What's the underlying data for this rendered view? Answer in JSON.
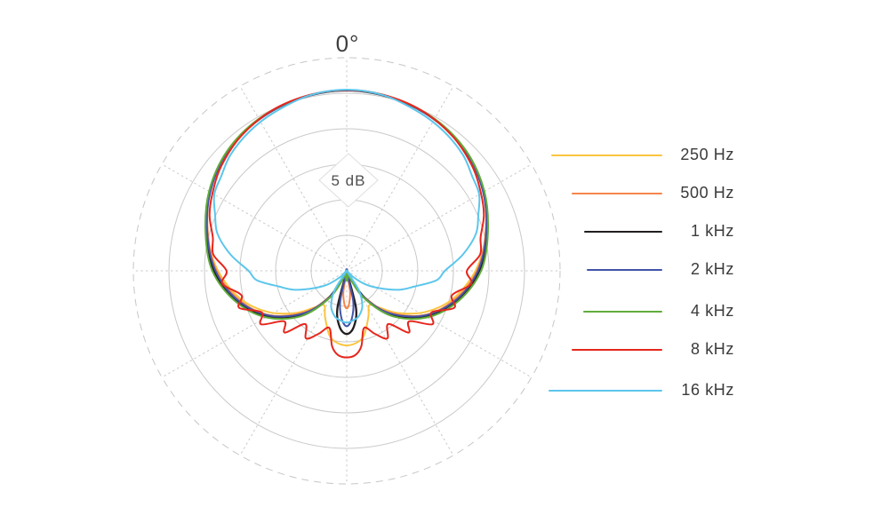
{
  "chart": {
    "angle_top_label": "0°",
    "ring_spacing_label": "5 dB"
  },
  "chart_data": {
    "type": "line",
    "coordinate_system": "polar",
    "description": "Microphone directional (polar) response at seven frequencies; radial axis in dB, 5 dB per ring, grid spokes every 30 degrees, 0 dB at second ring from outside, outer dashed ring, curves mirrored about the 0°-180° axis.",
    "units": {
      "angle": "degrees from 0° at top",
      "radial": "dB"
    },
    "radial_axis": {
      "ring_spacing_db": 5,
      "solid_rings_db": [
        -20,
        -15,
        -10,
        -5,
        0
      ],
      "outer_dashed_ring_db": 5,
      "center_db": -25
    },
    "angle_grid_step_deg": 30,
    "symmetry": "mirrored about vertical axis",
    "series": [
      {
        "name": "250 Hz",
        "color": "#FAC53F",
        "points_deg_db": [
          [
            0,
            0.4
          ],
          [
            15,
            0.2
          ],
          [
            30,
            -0.3
          ],
          [
            45,
            -1.2
          ],
          [
            60,
            -2.7
          ],
          [
            75,
            -4.7
          ],
          [
            90,
            -6.9
          ],
          [
            105,
            -9.6
          ],
          [
            118,
            -12.6
          ],
          [
            130,
            -15.8
          ],
          [
            140,
            -18.4
          ],
          [
            147,
            -19.2
          ],
          [
            155,
            -17.8
          ],
          [
            165,
            -15.6
          ],
          [
            172,
            -14.8
          ],
          [
            180,
            -14.5
          ]
        ]
      },
      {
        "name": "500 Hz",
        "color": "#F6854C",
        "points_deg_db": [
          [
            0,
            0.4
          ],
          [
            15,
            0.15
          ],
          [
            30,
            -0.4
          ],
          [
            45,
            -1.3
          ],
          [
            60,
            -2.8
          ],
          [
            75,
            -4.8
          ],
          [
            90,
            -6.7
          ],
          [
            105,
            -9.3
          ],
          [
            120,
            -12.5
          ],
          [
            135,
            -16.8
          ],
          [
            147,
            -20.8
          ],
          [
            156,
            -23.8
          ],
          [
            163,
            -25
          ],
          [
            171,
            -22
          ],
          [
            176,
            -20.3
          ],
          [
            180,
            -19.7
          ]
        ]
      },
      {
        "name": "1 kHz",
        "color": "#221E1F",
        "points_deg_db": [
          [
            0,
            0.4
          ],
          [
            15,
            0.15
          ],
          [
            30,
            -0.35
          ],
          [
            45,
            -1.25
          ],
          [
            60,
            -2.75
          ],
          [
            75,
            -4.6
          ],
          [
            90,
            -6.3
          ],
          [
            105,
            -8.9
          ],
          [
            120,
            -12.1
          ],
          [
            134,
            -15.9
          ],
          [
            145,
            -19.8
          ],
          [
            153,
            -23.5
          ],
          [
            158,
            -25
          ],
          [
            166,
            -19.6
          ],
          [
            173,
            -17
          ],
          [
            180,
            -16.1
          ]
        ]
      },
      {
        "name": "2 kHz",
        "color": "#4253A8",
        "points_deg_db": [
          [
            0,
            0.4
          ],
          [
            15,
            0.15
          ],
          [
            30,
            -0.4
          ],
          [
            45,
            -1.3
          ],
          [
            60,
            -2.85
          ],
          [
            75,
            -4.7
          ],
          [
            90,
            -6.55
          ],
          [
            105,
            -9.1
          ],
          [
            120,
            -12.4
          ],
          [
            135,
            -16.6
          ],
          [
            147,
            -20.6
          ],
          [
            156,
            -24.2
          ],
          [
            161,
            -25
          ],
          [
            168,
            -20.6
          ],
          [
            174,
            -18.2
          ],
          [
            180,
            -17.2
          ]
        ]
      },
      {
        "name": "4 kHz",
        "color": "#60AC3B",
        "points_deg_db": [
          [
            0,
            0.45
          ],
          [
            15,
            0.2
          ],
          [
            30,
            -0.3
          ],
          [
            45,
            -1.2
          ],
          [
            60,
            -2.65
          ],
          [
            75,
            -4.45
          ],
          [
            90,
            -6.1
          ],
          [
            105,
            -8.7
          ],
          [
            120,
            -11.9
          ],
          [
            135,
            -16
          ],
          [
            148,
            -20.6
          ],
          [
            158,
            -24.2
          ],
          [
            163,
            -25
          ],
          [
            170,
            -24.5
          ],
          [
            175,
            -23.9
          ],
          [
            180,
            -23.6
          ]
        ]
      },
      {
        "name": "8 kHz",
        "color": "#E6261D",
        "points_deg_db": [
          [
            0,
            0.45
          ],
          [
            12,
            0.3
          ],
          [
            25,
            -0.1
          ],
          [
            38,
            -0.9
          ],
          [
            50,
            -2
          ],
          [
            60,
            -3.2
          ],
          [
            68,
            -4.2
          ],
          [
            76,
            -5.6
          ],
          [
            83,
            -6.1
          ],
          [
            90,
            -8.1
          ],
          [
            96,
            -7.4
          ],
          [
            103,
            -9.8
          ],
          [
            109,
            -9
          ],
          [
            116,
            -11.7
          ],
          [
            122,
            -10.8
          ],
          [
            129,
            -13.7
          ],
          [
            135,
            -12.7
          ],
          [
            142,
            -15.5
          ],
          [
            149,
            -13.9
          ],
          [
            156,
            -15.3
          ],
          [
            163,
            -16.6
          ],
          [
            169,
            -14.2
          ],
          [
            174,
            -13.1
          ],
          [
            180,
            -12.8
          ]
        ]
      },
      {
        "name": "16 kHz",
        "color": "#5CC6EC",
        "points_deg_db": [
          [
            0,
            0.5
          ],
          [
            12,
            0.25
          ],
          [
            25,
            -0.5
          ],
          [
            35,
            -1.1
          ],
          [
            45,
            -1.9
          ],
          [
            53,
            -2.9
          ],
          [
            60,
            -3.5
          ],
          [
            67,
            -4.9
          ],
          [
            74,
            -6.1
          ],
          [
            82,
            -8.5
          ],
          [
            90,
            -11.2
          ],
          [
            96,
            -12.3
          ],
          [
            103,
            -15.2
          ],
          [
            110,
            -17.2
          ],
          [
            118,
            -19.8
          ],
          [
            126,
            -21.8
          ],
          [
            134,
            -23.8
          ],
          [
            140,
            -25
          ],
          [
            148,
            -21.8
          ],
          [
            156,
            -19.6
          ],
          [
            165,
            -18.4
          ],
          [
            172,
            -18
          ],
          [
            180,
            -17.7
          ]
        ]
      }
    ]
  },
  "legend": {
    "items": [
      {
        "label": "250 Hz"
      },
      {
        "label": "500 Hz"
      },
      {
        "label": "1 kHz"
      },
      {
        "label": "2 kHz"
      },
      {
        "label": "4 kHz"
      },
      {
        "label": "8 kHz"
      },
      {
        "label": "16 kHz"
      }
    ]
  }
}
